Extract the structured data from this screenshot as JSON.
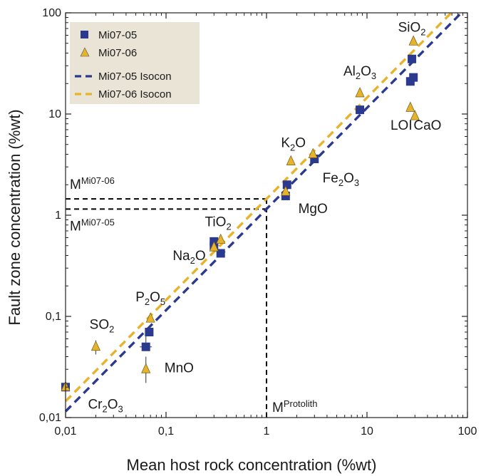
{
  "chart_data": {
    "type": "scatter",
    "xlabel": "Mean host rock concentration (%wt)",
    "ylabel": "Fault zone concentration (%wt)",
    "x_scale": "log",
    "y_scale": "log",
    "xlim": [
      0.01,
      100
    ],
    "ylim": [
      0.01,
      100
    ],
    "x_ticks": [
      "0,01",
      "0,1",
      "1",
      "10",
      "100"
    ],
    "y_ticks": [
      "0,01",
      "0,1",
      "1",
      "10",
      "100"
    ],
    "legend_position": "top-left",
    "colors": {
      "mi0705": "#2b3a8f",
      "mi0706": "#e6b32a",
      "legend_bg": "#e9e4d6",
      "guide": "#000000"
    },
    "series": [
      {
        "name": "Mi07-05",
        "marker": "square",
        "color": "#2b3a8f",
        "points": [
          {
            "x": 28,
            "y": 35
          },
          {
            "x": 29,
            "y": 23
          },
          {
            "x": 27,
            "y": 21
          },
          {
            "x": 8.5,
            "y": 11
          },
          {
            "x": 3.0,
            "y": 3.6
          },
          {
            "x": 1.6,
            "y": 2.0
          },
          {
            "x": 1.55,
            "y": 1.55
          },
          {
            "x": 0.3,
            "y": 0.55
          },
          {
            "x": 0.35,
            "y": 0.42
          },
          {
            "x": 0.3,
            "y": 0.5
          },
          {
            "x": 0.068,
            "y": 0.07
          },
          {
            "x": 0.063,
            "y": 0.05
          },
          {
            "x": 0.01,
            "y": 0.02
          }
        ]
      },
      {
        "name": "Mi07-06",
        "marker": "triangle",
        "color": "#e6b32a",
        "points": [
          {
            "x": 29,
            "y": 52
          },
          {
            "x": 8.5,
            "y": 16
          },
          {
            "x": 27,
            "y": 11.5
          },
          {
            "x": 30,
            "y": 9.5
          },
          {
            "x": 1.75,
            "y": 3.4
          },
          {
            "x": 2.9,
            "y": 4.0
          },
          {
            "x": 1.55,
            "y": 1.7
          },
          {
            "x": 0.35,
            "y": 0.57
          },
          {
            "x": 0.3,
            "y": 0.48
          },
          {
            "x": 0.07,
            "y": 0.095
          },
          {
            "x": 0.063,
            "y": 0.03
          },
          {
            "x": 0.02,
            "y": 0.05
          },
          {
            "x": 0.01,
            "y": 0.02
          }
        ]
      },
      {
        "name": "Mi07-05 Isocon",
        "line": "dashed",
        "color": "#2b3a8f",
        "slope": 1.15
      },
      {
        "name": "Mi07-06 Isocon",
        "line": "dashed",
        "color": "#e6b32a",
        "slope": 1.45
      }
    ],
    "guide_lines": {
      "m_mi0706": 1.45,
      "m_mi0705": 1.15,
      "m_protolith": 1
    },
    "annotations": [
      {
        "x": 28,
        "y": 65,
        "base": "SiO",
        "sub": "2",
        "rest": ""
      },
      {
        "x": 8.5,
        "y": 24,
        "base": "Al",
        "sub": "2",
        "rest": "O",
        "sub2": "3"
      },
      {
        "x": 22,
        "y": 7.0,
        "base": "LOI",
        "sub": "",
        "rest": ""
      },
      {
        "x": 40,
        "y": 7.0,
        "base": "CaO",
        "sub": "",
        "rest": ""
      },
      {
        "x": 1.85,
        "y": 4.7,
        "base": "K",
        "sub": "2",
        "rest": "O"
      },
      {
        "x": 5.5,
        "y": 2.1,
        "base": "Fe",
        "sub": "2",
        "rest": "O",
        "sub2": "3"
      },
      {
        "x": 2.9,
        "y": 1.05,
        "base": "MgO",
        "sub": "",
        "rest": ""
      },
      {
        "x": 0.33,
        "y": 0.78,
        "base": "TiO",
        "sub": "2",
        "rest": ""
      },
      {
        "x": 0.17,
        "y": 0.36,
        "base": "Na",
        "sub": "2",
        "rest": "O"
      },
      {
        "x": 0.07,
        "y": 0.14,
        "base": "P",
        "sub": "2",
        "rest": "O",
        "sub2": "5"
      },
      {
        "x": 0.023,
        "y": 0.075,
        "base": "SO",
        "sub": "2",
        "rest": ""
      },
      {
        "x": 0.135,
        "y": 0.028,
        "base": "MnO",
        "sub": "",
        "rest": ""
      },
      {
        "x": 0.025,
        "y": 0.0122,
        "base": "Cr",
        "sub": "2",
        "rest": "O",
        "sub2": "3"
      }
    ],
    "guide_labels": {
      "m_mi0706": {
        "base": "M",
        "sup": "Mi07-06"
      },
      "m_mi0705": {
        "base": "M",
        "sup": "Mi07-05"
      },
      "m_protolith": {
        "base": "M",
        "sup": "Protolith"
      }
    }
  }
}
